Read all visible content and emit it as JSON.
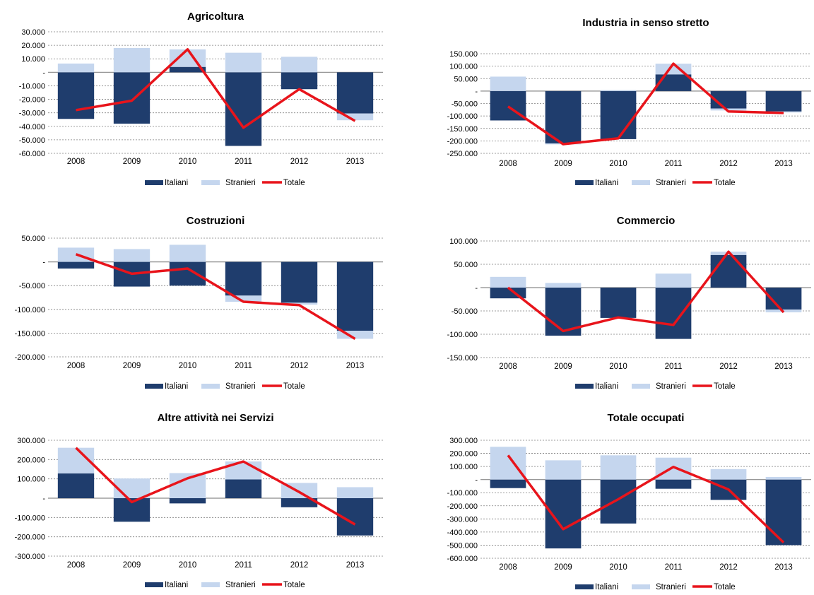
{
  "chart_data": [
    {
      "type": "bar",
      "title": "Agricoltura",
      "categories": [
        "2008",
        "2009",
        "2010",
        "2011",
        "2012",
        "2013"
      ],
      "ylim": [
        -60000,
        30000
      ],
      "yticks": [
        "30.000",
        "20.000",
        "10.000",
        "-",
        "-10.000",
        "-20.000",
        "-30.000",
        "-40.000",
        "-50.000",
        "-60.000"
      ],
      "grid": true,
      "legend": "bottom",
      "series": [
        {
          "name": "Italiani",
          "type": "bar",
          "values": [
            -34500,
            -38000,
            4000,
            -54500,
            -12500,
            -30500
          ]
        },
        {
          "name": "Stranieri",
          "type": "bar",
          "values": [
            6500,
            18000,
            13000,
            14500,
            11500,
            -5000
          ]
        },
        {
          "name": "Totale",
          "type": "line",
          "values": [
            -28000,
            -21000,
            17000,
            -41000,
            -12500,
            -36000
          ]
        }
      ]
    },
    {
      "type": "bar",
      "title": "Industria in senso stretto",
      "categories": [
        "2008",
        "2009",
        "2010",
        "2011",
        "2012",
        "2013"
      ],
      "ylim": [
        -250000,
        150000
      ],
      "yticks": [
        "150.000",
        "100.000",
        "50.000",
        "-",
        "-50.000",
        "-100.000",
        "-150.000",
        "-200.000",
        "-250.000"
      ],
      "grid": true,
      "legend": "bottom",
      "series": [
        {
          "name": "Italiani",
          "type": "bar",
          "values": [
            -118000,
            -210000,
            -193000,
            67000,
            -70000,
            -82000
          ]
        },
        {
          "name": "Stranieri",
          "type": "bar",
          "values": [
            58000,
            -4000,
            4000,
            43000,
            -8000,
            -4000
          ]
        },
        {
          "name": "Totale",
          "type": "line",
          "values": [
            -62000,
            -213000,
            -190000,
            110000,
            -82000,
            -88000
          ]
        }
      ]
    },
    {
      "type": "bar",
      "title": "Costruzioni",
      "categories": [
        "2008",
        "2009",
        "2010",
        "2011",
        "2012",
        "2013"
      ],
      "ylim": [
        -200000,
        50000
      ],
      "yticks": [
        "50.000",
        "-",
        "-50.000",
        "-100.000",
        "-150.000",
        "-200.000"
      ],
      "grid": true,
      "legend": "bottom",
      "series": [
        {
          "name": "Italiani",
          "type": "bar",
          "values": [
            -14000,
            -52000,
            -50000,
            -71000,
            -86000,
            -145000
          ]
        },
        {
          "name": "Stranieri",
          "type": "bar",
          "values": [
            30000,
            27000,
            36000,
            -13000,
            -4000,
            -17000
          ]
        },
        {
          "name": "Totale",
          "type": "line",
          "values": [
            16000,
            -25000,
            -14000,
            -84000,
            -91000,
            -162000
          ]
        }
      ]
    },
    {
      "type": "bar",
      "title": "Commercio",
      "categories": [
        "2008",
        "2009",
        "2010",
        "2011",
        "2012",
        "2013"
      ],
      "ylim": [
        -150000,
        100000
      ],
      "yticks": [
        "100.000",
        "50.000",
        "-",
        "-50.000",
        "-100.000",
        "-150.000"
      ],
      "grid": true,
      "legend": "bottom",
      "series": [
        {
          "name": "Italiani",
          "type": "bar",
          "values": [
            -23000,
            -103000,
            -65000,
            -110000,
            70000,
            -47000
          ]
        },
        {
          "name": "Stranieri",
          "type": "bar",
          "values": [
            23000,
            10000,
            0,
            30000,
            7000,
            -6000
          ]
        },
        {
          "name": "Totale",
          "type": "line",
          "values": [
            0,
            -93000,
            -64000,
            -80000,
            77000,
            -53000
          ]
        }
      ]
    },
    {
      "type": "bar",
      "title": "Altre attività nei Servizi",
      "categories": [
        "2008",
        "2009",
        "2010",
        "2011",
        "2012",
        "2013"
      ],
      "ylim": [
        -300000,
        300000
      ],
      "yticks": [
        "300.000",
        "200.000",
        "100.000",
        "-",
        "-100.000",
        "-200.000",
        "-300.000"
      ],
      "grid": true,
      "legend": "bottom",
      "series": [
        {
          "name": "Italiani",
          "type": "bar",
          "values": [
            128000,
            -122000,
            -27000,
            97000,
            -47000,
            -193000
          ]
        },
        {
          "name": "Stranieri",
          "type": "bar",
          "values": [
            133000,
            102000,
            130000,
            93000,
            79000,
            57000
          ]
        },
        {
          "name": "Totale",
          "type": "line",
          "values": [
            261000,
            -20000,
            103000,
            190000,
            32000,
            -136000
          ]
        }
      ]
    },
    {
      "type": "bar",
      "title": "Totale occupati",
      "categories": [
        "2008",
        "2009",
        "2010",
        "2011",
        "2012",
        "2013"
      ],
      "ylim": [
        -600000,
        300000
      ],
      "yticks": [
        "300.000",
        "200.000",
        "100.000",
        "-",
        "-100.000",
        "-200.000",
        "-300.000",
        "-400.000",
        "-500.000",
        "-600.000"
      ],
      "grid": true,
      "legend": "bottom",
      "series": [
        {
          "name": "Italiani",
          "type": "bar",
          "values": [
            -65000,
            -525000,
            -335000,
            -70000,
            -155000,
            -500000
          ]
        },
        {
          "name": "Stranieri",
          "type": "bar",
          "values": [
            250000,
            147000,
            185000,
            167000,
            80000,
            20000
          ]
        },
        {
          "name": "Totale",
          "type": "line",
          "values": [
            185000,
            -378000,
            -150000,
            97000,
            -75000,
            -480000
          ]
        }
      ]
    }
  ],
  "colors": {
    "italiani": "#1f3d6d",
    "stranieri": "#c5d6ee",
    "totale": "#e8141b",
    "grid": "#7f7f7f",
    "text": "#000000"
  }
}
